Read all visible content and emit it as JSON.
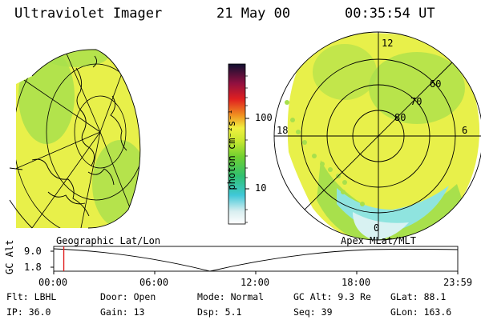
{
  "header": {
    "instrument": "Ultraviolet Imager",
    "date": "21 May 00",
    "time": "00:35:54 UT"
  },
  "colorbar": {
    "unit_label": "photon cm⁻²s⁻¹",
    "ticks": [
      "100",
      "10"
    ]
  },
  "polar_map": {
    "lat_labels": [
      "60",
      "70",
      "80"
    ],
    "mlt_labels": [
      "12",
      "18",
      "6",
      "0"
    ]
  },
  "timeline": {
    "left_label": "Geographic Lat/Lon",
    "right_label": "Apex MLat/MLT",
    "yaxis_label": "GC Alt",
    "y_ticks": [
      "9.0",
      "1.8"
    ],
    "x_ticks": [
      "00:00",
      "06:00",
      "12:00",
      "18:00",
      "23:59"
    ],
    "current_time_fraction": 0.0249
  },
  "status": {
    "row1": [
      {
        "key": "Flt:",
        "value": "LBHL"
      },
      {
        "key": "Door:",
        "value": "Open"
      },
      {
        "key": "Mode:",
        "value": "Normal"
      },
      {
        "key": "GC Alt:",
        "value": "9.3 Re"
      },
      {
        "key": "GLat:",
        "value": "88.1"
      }
    ],
    "row2": [
      {
        "key": "IP:",
        "value": "36.0"
      },
      {
        "key": "Gain:",
        "value": "13"
      },
      {
        "key": "Dsp:",
        "value": "5.1"
      },
      {
        "key": "Seq:",
        "value": "39"
      },
      {
        "key": "GLon:",
        "value": "163.6"
      }
    ]
  },
  "colors": {
    "aurora_yellow": "#e8f04a",
    "aurora_green": "#a8e04c",
    "aurora_cyan": "#8fe4df",
    "timeline_marker": "#e02020"
  }
}
